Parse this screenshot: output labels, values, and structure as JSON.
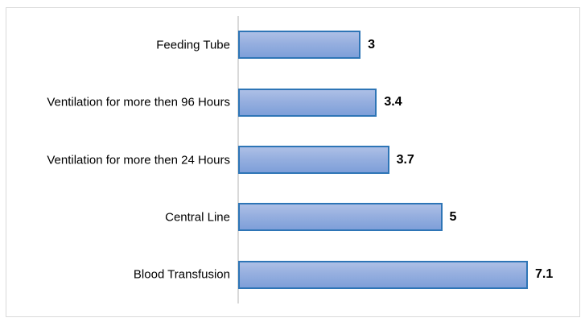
{
  "chart_data": {
    "type": "bar",
    "orientation": "horizontal",
    "title": "",
    "xlabel": "",
    "ylabel": "",
    "categories": [
      "Feeding Tube",
      "Ventilation for more then 96 Hours",
      "Ventilation for more then 24 Hours",
      "Central Line",
      "Blood Transfusion"
    ],
    "values": [
      3,
      3.4,
      3.7,
      5,
      7.1
    ],
    "value_labels": [
      "3",
      "3.4",
      "3.7",
      "5",
      "7.1"
    ],
    "xlim": [
      0,
      8
    ],
    "grid": false,
    "legend": false,
    "data_labels": "outside-end",
    "colors": {
      "bar_fill_top": "#ADBFE6",
      "bar_fill_mid": "#96AFDF",
      "bar_fill_bottom": "#7E9FD9",
      "bar_border": "#2E75B6",
      "axis_line": "#D9D9D9",
      "frame_border": "#D9D9D9",
      "label_text": "#000000"
    }
  }
}
